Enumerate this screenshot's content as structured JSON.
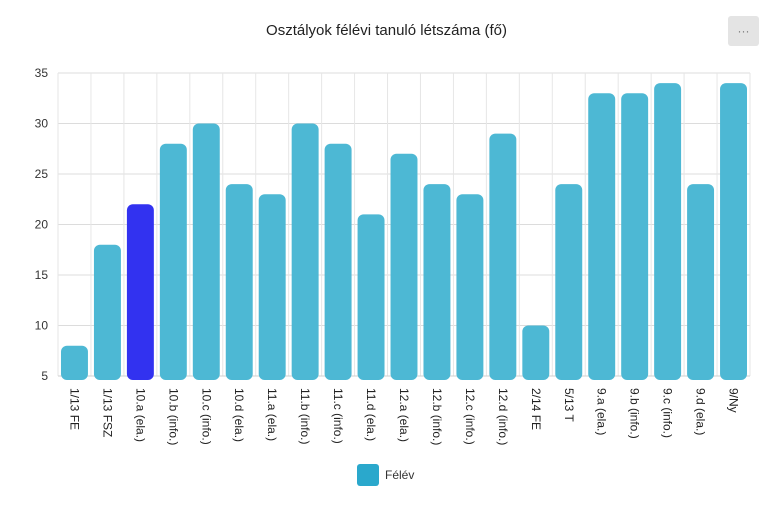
{
  "chart_data": {
    "type": "bar",
    "title": "Osztályok félévi tanuló létszáma (fő)",
    "xlabel": "",
    "ylabel": "",
    "ylim": [
      5,
      35
    ],
    "yticks": [
      5,
      10,
      15,
      20,
      25,
      30,
      35
    ],
    "grid": true,
    "legend_position": "bottom-center",
    "categories": [
      "1/13 FE",
      "1/13 FSZ",
      "10.a (ela.)",
      "10.b (info.)",
      "10.c (info.)",
      "10.d (ela.)",
      "11.a (ela.)",
      "11.b (info.)",
      "11.c (info.)",
      "11.d (ela.)",
      "12.a (ela.)",
      "12.b (info.)",
      "12.c (info.)",
      "12.d (info.)",
      "2/14 FE",
      "5/13 T",
      "9.a (ela.)",
      "9.b (info.)",
      "9.c (info.)",
      "9.d (ela.)",
      "9/Ny"
    ],
    "series": [
      {
        "name": "Félév",
        "values": [
          8,
          18,
          22,
          28,
          30,
          24,
          23,
          30,
          28,
          21,
          27,
          24,
          23,
          29,
          10,
          24,
          33,
          33,
          34,
          24,
          34
        ],
        "color": "#4db8d4",
        "highlight_index": 2,
        "highlight_color": "#3232f0"
      }
    ]
  },
  "legend": {
    "label": "Félév",
    "color": "#2aa8cc"
  },
  "menu": {
    "label": "···"
  }
}
